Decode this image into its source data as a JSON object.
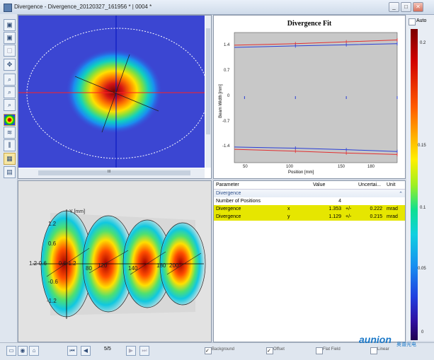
{
  "window": {
    "title": "Divergence - Divergence_20120327_161956 * | 0004 *",
    "buttons": [
      "_",
      "□",
      "✕"
    ]
  },
  "toolbar": {
    "icons": [
      "save-icon",
      "save-as-icon",
      "clipboard-icon",
      "move-icon",
      "zoom-in-icon",
      "zoom-out-icon",
      "zoom-fit-icon",
      "false-color-icon",
      "plot-2d-icon",
      "plot-3d-icon",
      "grid-icon",
      "notes-icon"
    ]
  },
  "image_view": {
    "scroll_label": "III",
    "beam_color": "beam false-color image"
  },
  "fit_chart": {
    "title": "Divergence Fit",
    "ylabel": "Beam Width [mm]",
    "xlabel": "Position [mm]",
    "yticks": [
      "1.4",
      "0.7",
      "0",
      "-0.7",
      "-1.4"
    ],
    "xticks": [
      "50",
      "100",
      "150",
      "180"
    ]
  },
  "chart_data": {
    "type": "line",
    "title": "Divergence Fit",
    "xlabel": "Position [mm]",
    "ylabel": "Beam Width [mm]",
    "xlim": [
      40,
      200
    ],
    "ylim": [
      -1.75,
      1.75
    ],
    "x": [
      40,
      100,
      150,
      200
    ],
    "series": [
      {
        "name": "",
        "color": "#e23030",
        "values": [
          1.41,
          1.45,
          1.5,
          1.55
        ]
      },
      {
        "name": "",
        "color": "#2a3fd6",
        "values": [
          1.35,
          1.39,
          1.42,
          1.45
        ]
      },
      {
        "name": "",
        "color": "#2a3fd6",
        "values": [
          -1.33,
          -1.36,
          -1.4,
          -1.45
        ]
      },
      {
        "name": "",
        "color": "#e23030",
        "values": [
          -1.39,
          -1.44,
          -1.49,
          -1.53
        ]
      }
    ],
    "markers": {
      "x": [
        50,
        100,
        150,
        200
      ],
      "values": [
        0,
        0,
        0,
        0
      ]
    }
  },
  "view3d": {
    "axis_label": "Y [mm]",
    "yticks": [
      "1.2",
      "0.6",
      "0",
      "-0.6",
      "-1.2"
    ],
    "left_labels": "1.2-0.6",
    "center_labels": "-0.6-1.2",
    "xticks": [
      "80",
      "120",
      "140",
      "180",
      "200"
    ]
  },
  "params": {
    "headers": [
      "Parameter",
      "Value",
      "Uncertai...",
      "Unit"
    ],
    "group": "Divergence",
    "rows": [
      {
        "parameter": "Number of Positions",
        "axis": "",
        "value": "4",
        "pm": "",
        "unc": "",
        "unit": "",
        "hl": false
      },
      {
        "parameter": "Divergence",
        "axis": "x",
        "value": "1.353",
        "pm": "+/-",
        "unc": "0.222",
        "unit": "mrad",
        "hl": true
      },
      {
        "parameter": "Divergence",
        "axis": "y",
        "value": "1.129",
        "pm": "+/-",
        "unc": "0.215",
        "unit": "mrad",
        "hl": true
      }
    ]
  },
  "colorbar": {
    "auto_label": "Auto",
    "ticks": [
      "0.2",
      "0.15",
      "0.1",
      "0.05",
      "0"
    ]
  },
  "statusbar": {
    "page": "5/5",
    "options": [
      "Background",
      "Offset",
      "Flat Field",
      "Linear"
    ],
    "logo": "aunion",
    "logo_cn": "奥谱光电"
  }
}
